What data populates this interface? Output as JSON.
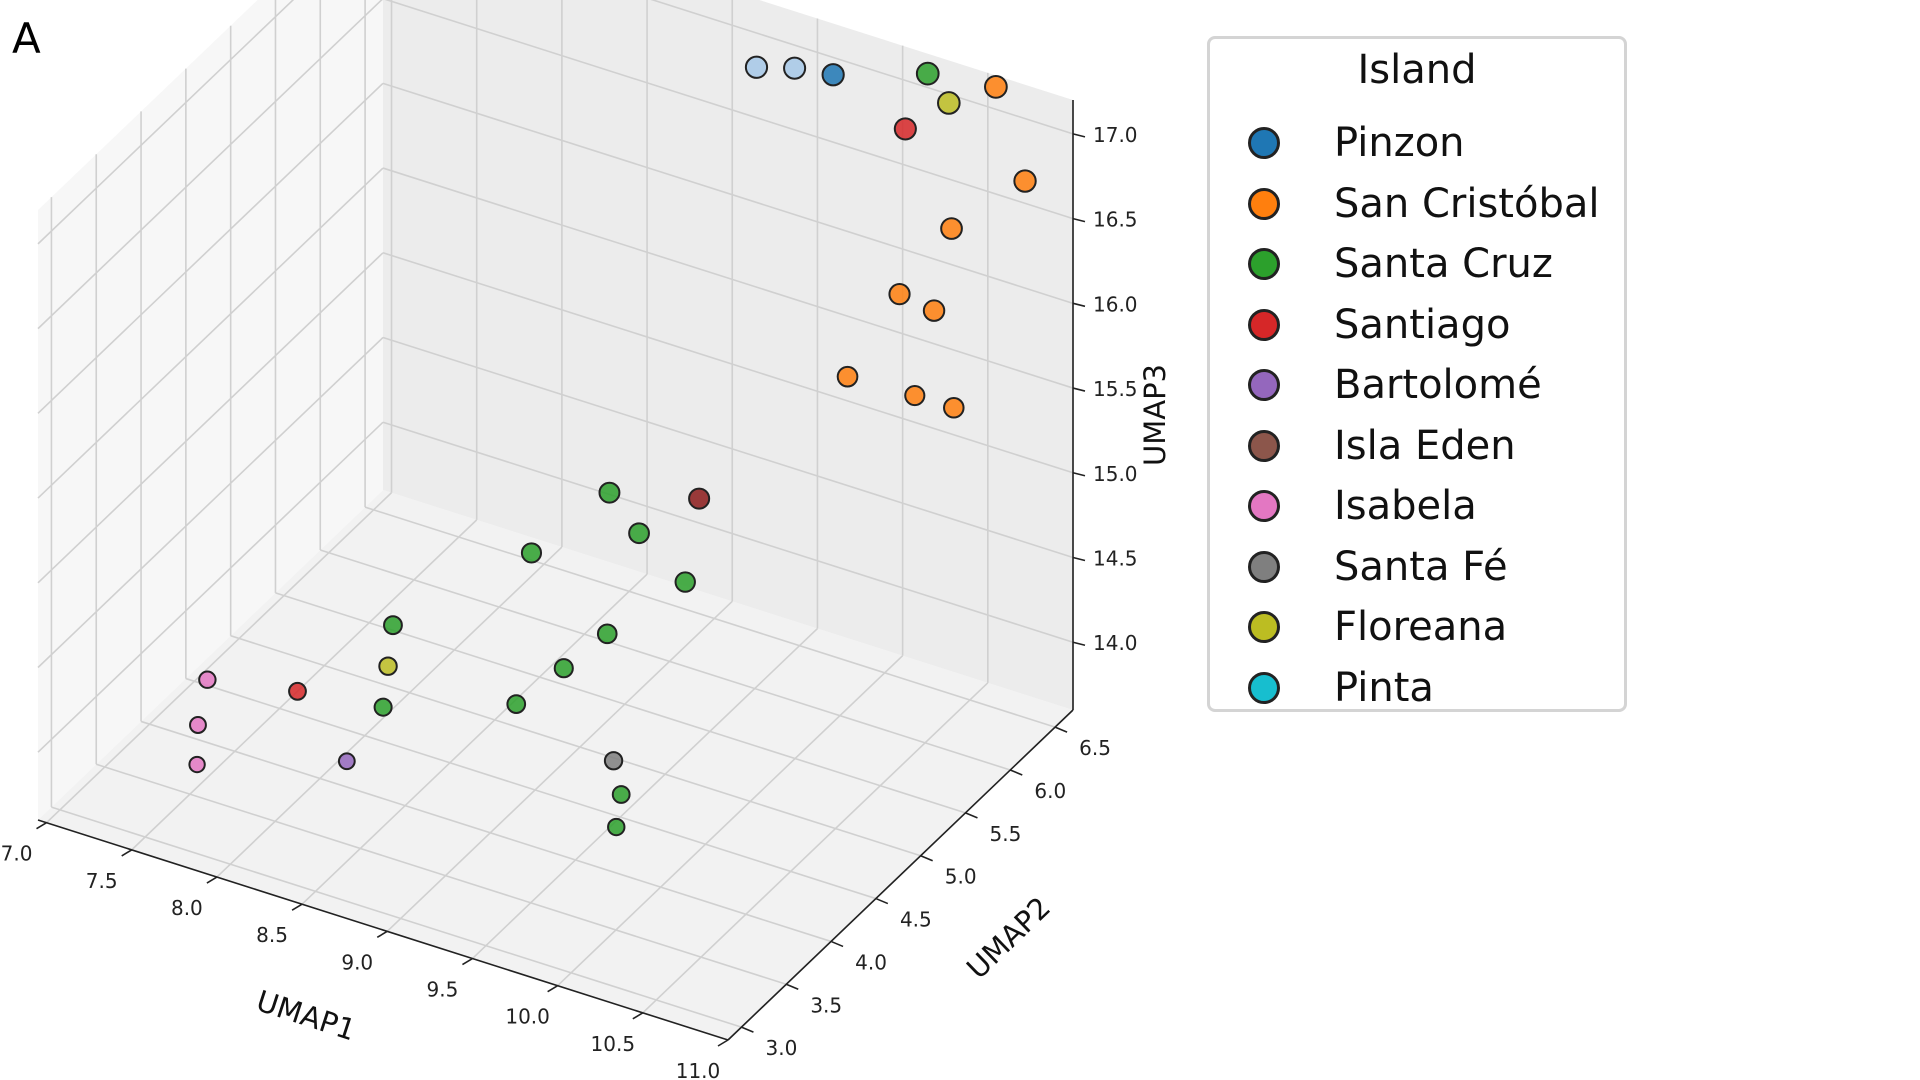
{
  "panel_label": "A",
  "chart_data": {
    "type": "scatter",
    "projection": "3d",
    "grid": true,
    "legend_placement": "outside-right",
    "xlabel": "UMAP1",
    "ylabel": "UMAP2",
    "zlabel": "UMAP3",
    "xlim": [
      6.95,
      11.0
    ],
    "ylim": [
      2.85,
      6.7
    ],
    "zlim": [
      13.6,
      17.2
    ],
    "xticks": [
      "7.0",
      "7.5",
      "8.0",
      "8.5",
      "9.0",
      "9.5",
      "10.0",
      "10.5",
      "11.0"
    ],
    "yticks": [
      "3.0",
      "3.5",
      "4.0",
      "4.5",
      "5.0",
      "5.5",
      "6.0",
      "6.5"
    ],
    "zticks": [
      "14.0",
      "14.5",
      "15.0",
      "15.5",
      "16.0",
      "16.5",
      "17.0"
    ],
    "legend_title": "Island",
    "series": [
      {
        "name": "Pinzon",
        "color": "#1f77b4",
        "points": [
          {
            "x": 9.75,
            "y": 6.4,
            "z": 17.1,
            "color": "#1f77b4"
          },
          {
            "x": 9.55,
            "y": 6.35,
            "z": 17.1,
            "color": "#a6c8e8"
          },
          {
            "x": 9.3,
            "y": 6.4,
            "z": 17.0,
            "color": "#a6c8e8"
          }
        ]
      },
      {
        "name": "San Cristóbal",
        "color": "#ff7f0e",
        "points": [
          {
            "x": 10.6,
            "y": 6.6,
            "z": 17.2
          },
          {
            "x": 10.85,
            "y": 6.45,
            "z": 16.8
          },
          {
            "x": 10.55,
            "y": 6.2,
            "z": 16.55
          },
          {
            "x": 10.35,
            "y": 6.0,
            "z": 16.2
          },
          {
            "x": 10.15,
            "y": 5.8,
            "z": 15.75
          },
          {
            "x": 10.65,
            "y": 5.6,
            "z": 15.9
          },
          {
            "x": 10.5,
            "y": 6.1,
            "z": 16.1
          },
          {
            "x": 10.8,
            "y": 5.75,
            "z": 15.8
          }
        ]
      },
      {
        "name": "Santa Cruz",
        "color": "#2ca02c",
        "points": [
          {
            "x": 10.2,
            "y": 6.6,
            "z": 17.15
          },
          {
            "x": 8.7,
            "y": 5.9,
            "z": 14.55
          },
          {
            "x": 8.9,
            "y": 5.85,
            "z": 14.4
          },
          {
            "x": 9.25,
            "y": 5.7,
            "z": 14.3
          },
          {
            "x": 8.4,
            "y": 5.6,
            "z": 14.25
          },
          {
            "x": 8.95,
            "y": 5.4,
            "z": 14.05
          },
          {
            "x": 8.8,
            "y": 5.2,
            "z": 13.9
          },
          {
            "x": 8.6,
            "y": 5.05,
            "z": 13.7
          },
          {
            "x": 7.85,
            "y": 5.1,
            "z": 13.9
          },
          {
            "x": 7.95,
            "y": 4.8,
            "z": 13.6
          },
          {
            "x": 9.4,
            "y": 4.7,
            "z": 13.6
          },
          {
            "x": 9.45,
            "y": 4.55,
            "z": 13.5
          }
        ]
      },
      {
        "name": "Santiago",
        "color": "#d62728",
        "points": [
          {
            "x": 10.2,
            "y": 6.35,
            "z": 16.95,
            "color": "#d62728"
          },
          {
            "x": 9.2,
            "y": 5.95,
            "z": 14.65,
            "color": "#8b1a1a"
          },
          {
            "x": 7.5,
            "y": 4.7,
            "z": 13.6,
            "color": "#d62728"
          }
        ]
      },
      {
        "name": "Bartolomé",
        "color": "#9467bd",
        "points": [
          {
            "x": 8.0,
            "y": 4.3,
            "z": 13.55
          }
        ]
      },
      {
        "name": "Isla Eden",
        "color": "#8c564b",
        "points": []
      },
      {
        "name": "Isabela",
        "color": "#e377c2",
        "points": [
          {
            "x": 7.05,
            "y": 4.55,
            "z": 13.6
          },
          {
            "x": 7.1,
            "y": 4.35,
            "z": 13.45
          },
          {
            "x": 7.2,
            "y": 4.15,
            "z": 13.35
          }
        ]
      },
      {
        "name": "Santa Fé",
        "color": "#7f7f7f",
        "points": [
          {
            "x": 9.25,
            "y": 4.9,
            "z": 13.65
          }
        ]
      },
      {
        "name": "Floreana",
        "color": "#bcbd22",
        "points": [
          {
            "x": 10.35,
            "y": 6.55,
            "z": 17.05
          },
          {
            "x": 7.9,
            "y": 4.95,
            "z": 13.75
          }
        ]
      },
      {
        "name": "Pinta",
        "color": "#17becf",
        "points": []
      }
    ]
  }
}
